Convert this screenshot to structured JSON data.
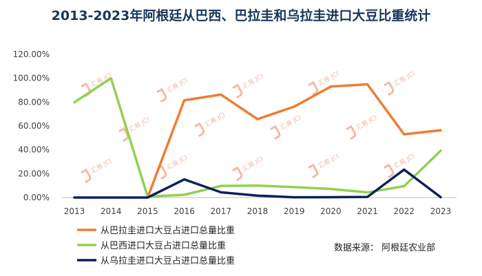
{
  "chart_data": {
    "type": "line",
    "title": "2013-2023年阿根廷从巴西、巴拉圭和乌拉圭进口大豆比重统计",
    "categories": [
      "2013",
      "2014",
      "2015",
      "2016",
      "2017",
      "2018",
      "2019",
      "2020",
      "2021",
      "2022",
      "2023"
    ],
    "ylim": [
      0,
      120
    ],
    "yticks": [
      "0.00%",
      "20.00%",
      "40.00%",
      "60.00%",
      "80.00%",
      "100.00%",
      "120.00%"
    ],
    "series": [
      {
        "name": "从巴拉圭进口大豆占进口总量比重",
        "color": "#ed7d31",
        "values": [
          null,
          null,
          0,
          81.5,
          86.3,
          65.7,
          76.2,
          93.0,
          94.9,
          53.0,
          56.4
        ]
      },
      {
        "name": "从巴西进口大豆占进口总量比重",
        "color": "#92d050",
        "values": [
          79.8,
          100.0,
          0.8,
          2.3,
          9.7,
          10.0,
          8.7,
          7.2,
          4.3,
          9.5,
          39.3
        ]
      },
      {
        "name": "从乌拉圭进口大豆占进口总量比重",
        "color": "#0d1f5c",
        "values": [
          0,
          0,
          0,
          15.2,
          4.4,
          1.6,
          0.2,
          0.3,
          0.5,
          23.4,
          0.3
        ]
      }
    ],
    "grid": false,
    "legend_position": "bottom-left"
  },
  "source": "数据来源： 阿根廷农业部",
  "watermark": "汇易 JCI"
}
